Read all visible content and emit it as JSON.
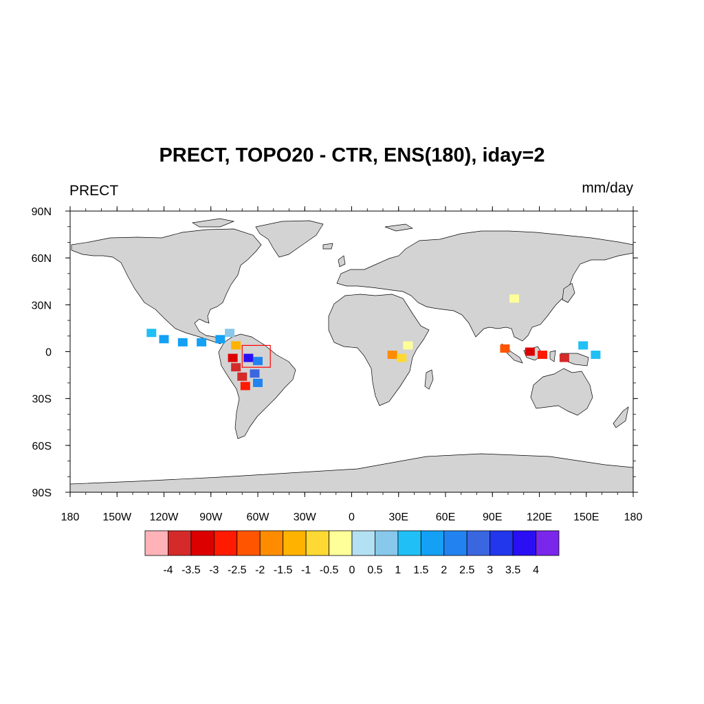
{
  "title": "PRECT, TOPO20 - CTR, ENS(180), iday=2",
  "left_string": "PRECT",
  "right_string": "mm/day",
  "colors": {
    "land": "#d3d3d3",
    "coast": "#000000",
    "box": "#ff0000"
  },
  "map": {
    "projection": "cylindrical-equidistant",
    "lon_range": [
      -180,
      180
    ],
    "lat_range": [
      -90,
      90
    ],
    "lon_ticks": [
      {
        "value": -180,
        "label": "180"
      },
      {
        "value": -150,
        "label": "150W"
      },
      {
        "value": -120,
        "label": "120W"
      },
      {
        "value": -90,
        "label": "90W"
      },
      {
        "value": -60,
        "label": "60W"
      },
      {
        "value": -30,
        "label": "30W"
      },
      {
        "value": 0,
        "label": "0"
      },
      {
        "value": 30,
        "label": "30E"
      },
      {
        "value": 60,
        "label": "60E"
      },
      {
        "value": 90,
        "label": "90E"
      },
      {
        "value": 120,
        "label": "120E"
      },
      {
        "value": 150,
        "label": "150E"
      },
      {
        "value": 180,
        "label": "180"
      }
    ],
    "lat_ticks": [
      {
        "value": 90,
        "label": "90N"
      },
      {
        "value": 60,
        "label": "60N"
      },
      {
        "value": 30,
        "label": "30N"
      },
      {
        "value": 0,
        "label": "0"
      },
      {
        "value": -30,
        "label": "30S"
      },
      {
        "value": -60,
        "label": "60S"
      },
      {
        "value": -90,
        "label": "90S"
      }
    ],
    "region_box": {
      "lon": [
        -70,
        -52
      ],
      "lat": [
        -10,
        4
      ]
    }
  },
  "colorbar": {
    "colors": [
      "#ffb3b8",
      "#d42a2a",
      "#dd0000",
      "#ff1a00",
      "#ff5500",
      "#ff8c00",
      "#ffb300",
      "#ffd933",
      "#ffff99",
      "#b3e0f2",
      "#87c8eb",
      "#20bff5",
      "#14a0f5",
      "#2283f0",
      "#3a66e0",
      "#2236eb",
      "#2a0ff5",
      "#7a26eb"
    ],
    "labels": [
      "-4",
      "-3.5",
      "-3",
      "-2.5",
      "-2",
      "-1.5",
      "-1",
      "-0.5",
      "0",
      "0.5",
      "1",
      "1.5",
      "2",
      "2.5",
      "3",
      "3.5",
      "4"
    ]
  },
  "anomaly_patches": [
    {
      "lon": -128,
      "lat": 12,
      "value": 1.2
    },
    {
      "lon": -120,
      "lat": 8,
      "value": 1.5
    },
    {
      "lon": -108,
      "lat": 6,
      "value": 1.5
    },
    {
      "lon": -96,
      "lat": 6,
      "value": 1.5
    },
    {
      "lon": -84,
      "lat": 8,
      "value": 1.5
    },
    {
      "lon": -78,
      "lat": 12,
      "value": 0.5
    },
    {
      "lon": -74,
      "lat": 4,
      "value": -1.5
    },
    {
      "lon": -76,
      "lat": -4,
      "value": -3.5
    },
    {
      "lon": -74,
      "lat": -10,
      "value": -4
    },
    {
      "lon": -70,
      "lat": -16,
      "value": -4
    },
    {
      "lon": -68,
      "lat": -22,
      "value": -3
    },
    {
      "lon": -66,
      "lat": -4,
      "value": 3.5
    },
    {
      "lon": -60,
      "lat": -6,
      "value": 2
    },
    {
      "lon": -62,
      "lat": -14,
      "value": 2.5
    },
    {
      "lon": -60,
      "lat": -20,
      "value": 2
    },
    {
      "lon": 26,
      "lat": -2,
      "value": -2
    },
    {
      "lon": 32,
      "lat": -4,
      "value": -1
    },
    {
      "lon": 36,
      "lat": 4,
      "value": -0.5
    },
    {
      "lon": 104,
      "lat": 34,
      "value": -0.5
    },
    {
      "lon": 98,
      "lat": 2,
      "value": -2.5
    },
    {
      "lon": 114,
      "lat": 0,
      "value": -3.5
    },
    {
      "lon": 122,
      "lat": -2,
      "value": -3
    },
    {
      "lon": 136,
      "lat": -4,
      "value": -4
    },
    {
      "lon": 148,
      "lat": 4,
      "value": 1
    },
    {
      "lon": 156,
      "lat": -2,
      "value": 1
    }
  ]
}
